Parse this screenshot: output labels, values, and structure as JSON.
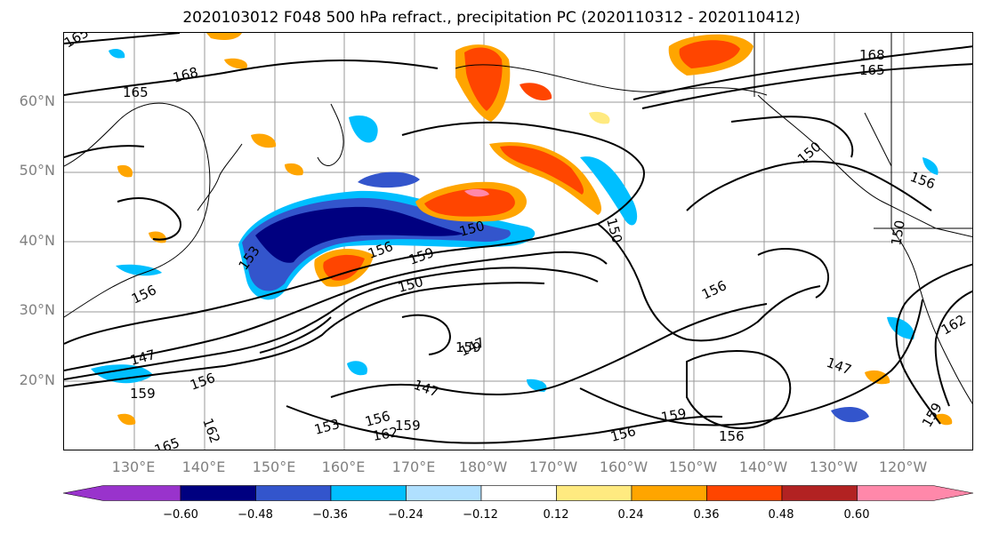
{
  "title": "2020103012 F048 500 hPa refract., precipitation PC (2020110312 - 2020110412)",
  "lat_labels": [
    "60°N",
    "50°N",
    "40°N",
    "30°N",
    "20°N"
  ],
  "lon_labels": [
    "130°E",
    "140°E",
    "150°E",
    "160°E",
    "170°E",
    "180°W",
    "170°W",
    "160°W",
    "150°W",
    "140°W",
    "130°W",
    "120°W"
  ],
  "contour_labels": [
    "165",
    "168",
    "165",
    "168",
    "165",
    "153",
    "150",
    "156",
    "159",
    "150",
    "150",
    "156",
    "147",
    "156",
    "159",
    "159",
    "147",
    "153",
    "156",
    "162",
    "162",
    "165",
    "159",
    "147",
    "156",
    "159",
    "156",
    "150",
    "156",
    "147",
    "150",
    "156",
    "159",
    "162"
  ],
  "colorbar": {
    "ticks": [
      "−0.60",
      "−0.48",
      "−0.36",
      "−0.24",
      "−0.12",
      "0.12",
      "0.24",
      "0.36",
      "0.48",
      "0.60"
    ],
    "colors": [
      "#9933cc",
      "#000080",
      "#3355cc",
      "#00bfff",
      "#b0e0ff",
      "#ffffff",
      "#ffea80",
      "#ffa500",
      "#ff4500",
      "#b22222",
      "#ff88aa"
    ]
  }
}
